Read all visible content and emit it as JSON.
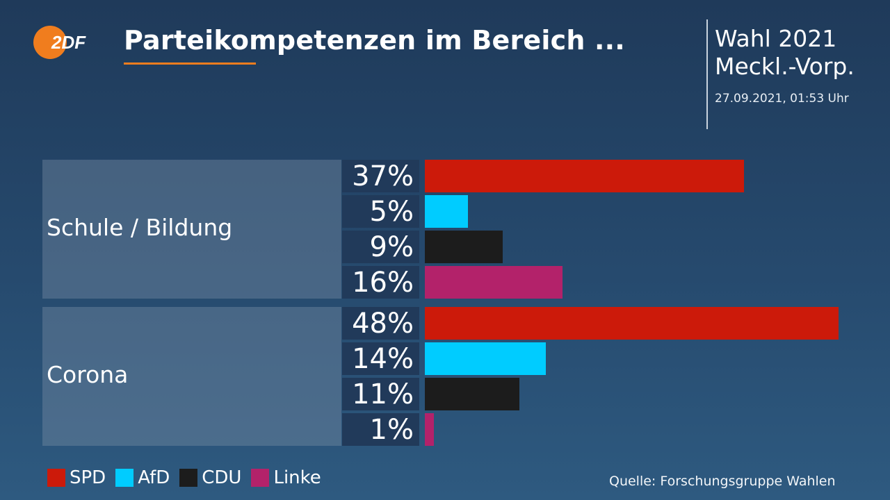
{
  "header": {
    "logo_text": "2DF",
    "title": "Parteikompetenzen im Bereich ...",
    "election_line1": "Wahl 2021",
    "election_line2": "Meckl.-Vorp.",
    "timestamp": "27.09.2021, 01:53 Uhr"
  },
  "colors": {
    "SPD": "#cc1a0a",
    "AfD": "#00ccff",
    "CDU": "#1c1c1c",
    "Linke": "#b3226a",
    "accent": "#f07d1e"
  },
  "chart_data": {
    "type": "bar",
    "orientation": "horizontal",
    "categories": [
      "Schule / Bildung",
      "Corona"
    ],
    "series": [
      {
        "name": "SPD",
        "values": [
          37,
          48
        ]
      },
      {
        "name": "AfD",
        "values": [
          5,
          14
        ]
      },
      {
        "name": "CDU",
        "values": [
          9,
          11
        ]
      },
      {
        "name": "Linke",
        "values": [
          16,
          1
        ]
      }
    ],
    "value_labels": [
      [
        "37%",
        "5%",
        "9%",
        "16%"
      ],
      [
        "48%",
        "14%",
        "11%",
        "1%"
      ]
    ],
    "legend": [
      "SPD",
      "AfD",
      "CDU",
      "Linke"
    ],
    "legend_position": "bottom-left",
    "unit": "%",
    "grid": false
  },
  "footer": {
    "source": "Quelle: Forschungsgruppe Wahlen"
  }
}
